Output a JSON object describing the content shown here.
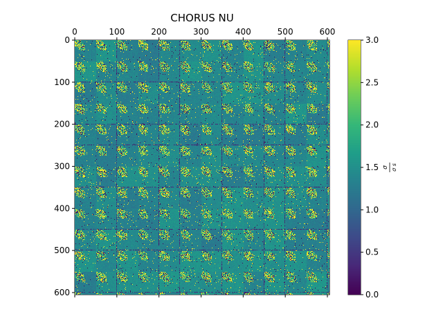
{
  "chart_data": {
    "type": "heatmap",
    "title": "CHORUS NU",
    "colormap": "viridis",
    "matrix_size": 605,
    "x_axis": {
      "position": "top",
      "ticks": [
        0,
        100,
        200,
        300,
        400,
        500,
        600
      ],
      "range": [
        0,
        605
      ]
    },
    "y_axis": {
      "position": "left",
      "ticks": [
        0,
        100,
        200,
        300,
        400,
        500,
        600
      ],
      "range": [
        0,
        605
      ]
    },
    "block_period": 50,
    "value_range": [
      0.0,
      3.0
    ],
    "dominant_value": 1.4,
    "colorbar": {
      "label": "σ / σ_s",
      "label_num": "σ",
      "label_den": "σ s",
      "ticks": [
        "0.0",
        "0.5",
        "1.0",
        "1.5",
        "2.0",
        "2.5",
        "3.0"
      ],
      "min": 0.0,
      "max": 3.0
    }
  }
}
